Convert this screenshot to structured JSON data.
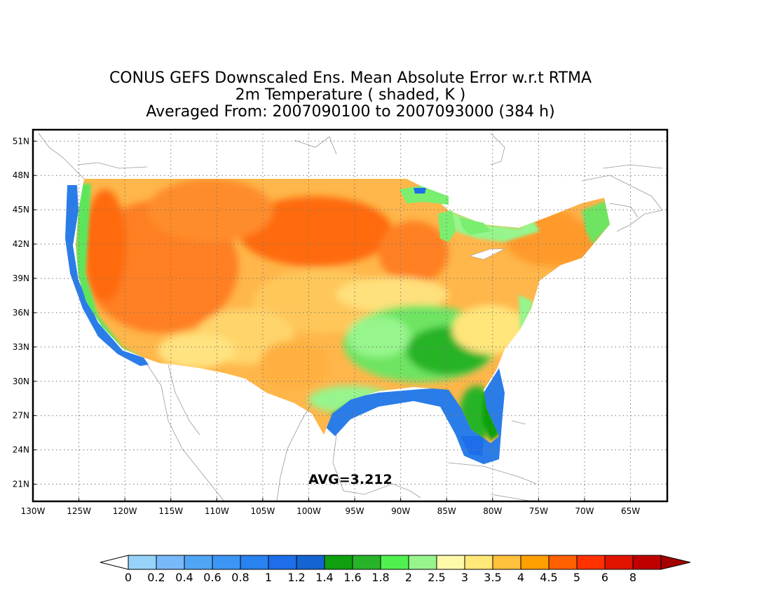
{
  "title": {
    "line1": "CONUS GEFS Downscaled Ens. Mean Absolute Error w.r.t RTMA",
    "line2": "2m Temperature ( shaded, K )",
    "line3": "Averaged From: 2007090100 to 2007093000 (384 h)"
  },
  "avg_label": "AVG=3.212",
  "map": {
    "lon_range": [
      -130,
      -61
    ],
    "lat_range": [
      19.5,
      52
    ],
    "lon_ticks": [
      "130W",
      "125W",
      "120W",
      "115W",
      "110W",
      "105W",
      "100W",
      "95W",
      "90W",
      "85W",
      "80W",
      "75W",
      "70W",
      "65W"
    ],
    "lon_values": [
      -130,
      -125,
      -120,
      -115,
      -110,
      -105,
      -100,
      -95,
      -90,
      -85,
      -80,
      -75,
      -70,
      -65
    ],
    "lat_ticks": [
      "21N",
      "24N",
      "27N",
      "30N",
      "33N",
      "36N",
      "39N",
      "42N",
      "45N",
      "48N",
      "51N"
    ],
    "lat_values": [
      21,
      24,
      27,
      30,
      33,
      36,
      39,
      42,
      45,
      48,
      51
    ],
    "grid": "dotted"
  },
  "colorbar": {
    "labels": [
      "0",
      "0.2",
      "0.4",
      "0.6",
      "0.8",
      "1",
      "1.2",
      "1.4",
      "1.6",
      "1.8",
      "2",
      "2.5",
      "3",
      "3.5",
      "4",
      "4.5",
      "5",
      "6",
      "8"
    ],
    "colors": [
      "#96d2fa",
      "#78b9fa",
      "#50a5f5",
      "#3c96f5",
      "#2882f0",
      "#1e6eeb",
      "#1464d2",
      "#0fa00f",
      "#28b428",
      "#50f050",
      "#96f58c",
      "#fffaaa",
      "#ffe878",
      "#ffc03c",
      "#ffa000",
      "#ff6000",
      "#ff3200",
      "#e11400",
      "#c00000"
    ],
    "under_color": "#ffffff",
    "over_color": "#a50000"
  }
}
